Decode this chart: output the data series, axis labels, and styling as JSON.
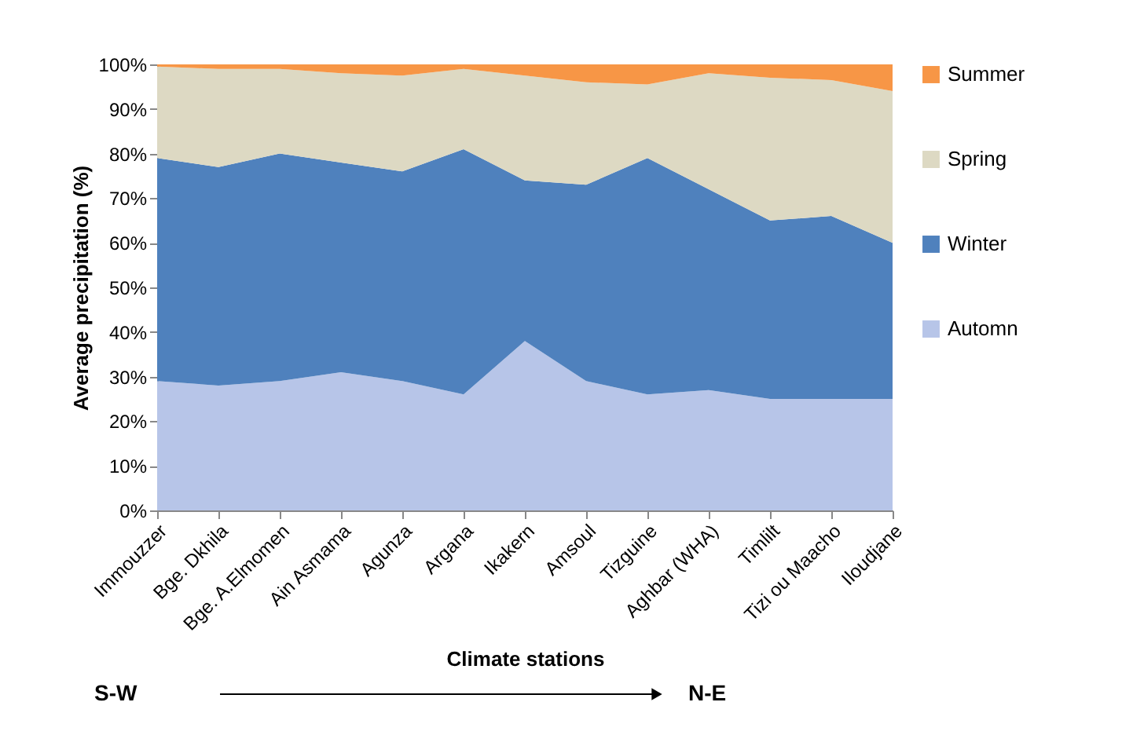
{
  "chart_data": {
    "type": "area",
    "stacked": true,
    "xlabel": "Climate stations",
    "ylabel": "Average precipitation (%)",
    "categories": [
      "Immouzzer",
      "Bge. Dkhila",
      "Bge. A.Elmomen",
      "Ain Asmama",
      "Agunza",
      "Argana",
      "Ikakern",
      "Amsoul",
      "Tizguine",
      "Aghbar (WHA)",
      "Timlilt",
      "Tizi ou Maacho",
      "Iloudjane"
    ],
    "series": [
      {
        "name": "Automn",
        "color": "#b7c5e8",
        "values": [
          29,
          28,
          29,
          31,
          29,
          26,
          38,
          29,
          26,
          27,
          25,
          25,
          25
        ]
      },
      {
        "name": "Winter",
        "color": "#4f81bd",
        "values": [
          50,
          49,
          51,
          47,
          47,
          55,
          36,
          44,
          53,
          45,
          40,
          41,
          35
        ]
      },
      {
        "name": "Spring",
        "color": "#ddd9c3",
        "values": [
          20.5,
          22,
          19,
          20,
          21.5,
          18,
          23.5,
          23,
          16.5,
          26,
          32,
          30.5,
          34
        ]
      },
      {
        "name": "Summer",
        "color": "#f79646",
        "values": [
          0.5,
          1,
          1,
          2,
          2.5,
          1,
          2.5,
          4,
          4.5,
          2,
          3,
          3.5,
          6
        ]
      }
    ],
    "ylim": [
      0,
      100
    ],
    "yticks": [
      {
        "value": 0,
        "label": "0%"
      },
      {
        "value": 10,
        "label": "10%"
      },
      {
        "value": 20,
        "label": "20%"
      },
      {
        "value": 30,
        "label": "30%"
      },
      {
        "value": 40,
        "label": "40%"
      },
      {
        "value": 50,
        "label": "50%"
      },
      {
        "value": 60,
        "label": "60%"
      },
      {
        "value": 70,
        "label": "70%"
      },
      {
        "value": 80,
        "label": "80%"
      },
      {
        "value": 90,
        "label": "90%"
      },
      {
        "value": 100,
        "label": "100%"
      }
    ],
    "grid": false,
    "legend": "right",
    "annotations": [
      "S-W",
      "N-E"
    ]
  }
}
